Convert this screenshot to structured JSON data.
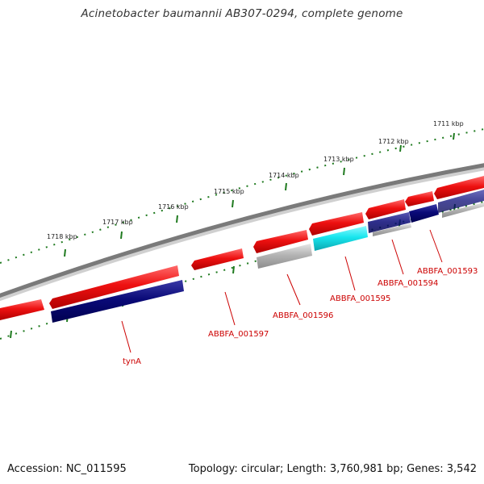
{
  "title": "Acinetobacter baumannii AB307-0294, complete genome",
  "footer": {
    "accession": "Accession: NC_011595",
    "topology": "Topology: circular; Length: 3,760,981 bp; Genes: 3,542"
  },
  "colors": {
    "backbone": "#7a7a7a",
    "tick": "#1f7a1f",
    "cds": "#ee1111",
    "rna": "#0a0a78",
    "pseudo": "#b4b4b4",
    "highlight": "#19e6ee",
    "label": "#cc0000"
  },
  "ruler": {
    "unit": "kbp",
    "labels": [
      "1711 kbp",
      "1712 kbp",
      "1713 kbp",
      "1714 kbp",
      "1715 kbp",
      "1716 kbp",
      "1717 kbp",
      "1718 kbp"
    ]
  },
  "features": [
    {
      "name": "ABBFA_001593",
      "track": "cds",
      "strand": "+"
    },
    {
      "name": "ABBFA_001594",
      "track": "rna",
      "strand": "+"
    },
    {
      "name": "ABBFA_001595",
      "track": "highlight",
      "strand": "+"
    },
    {
      "name": "ABBFA_001596",
      "track": "pseudo",
      "strand": "+"
    },
    {
      "name": "ABBFA_001597",
      "track": "cds",
      "strand": "-"
    },
    {
      "name": "tynA",
      "track": "rna",
      "strand": "+"
    }
  ],
  "gene_labels": [
    "ABBFA_001593",
    "ABBFA_001594",
    "ABBFA_001595",
    "ABBFA_001596",
    "ABBFA_001597",
    "tynA"
  ]
}
